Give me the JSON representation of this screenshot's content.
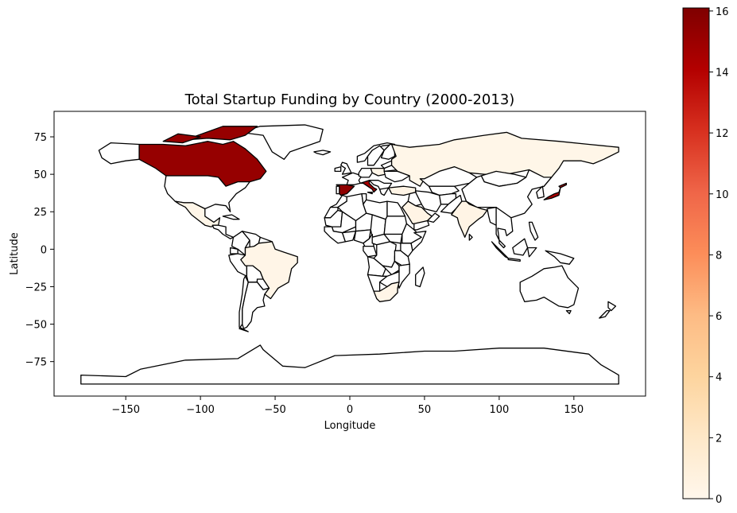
{
  "chart_data": {
    "type": "choropleth",
    "title": "Total Startup Funding by Country (2000-2013)",
    "xlabel": "Longitude",
    "ylabel": "Latitude",
    "xlim": [
      -198,
      198
    ],
    "ylim": [
      -98,
      92
    ],
    "x_ticks": [
      -150,
      -100,
      -50,
      0,
      50,
      100,
      150
    ],
    "y_ticks": [
      75,
      50,
      25,
      0,
      -25,
      -50,
      -75
    ],
    "x_tick_labels": [
      "−150",
      "−100",
      "−50",
      "0",
      "50",
      "100",
      "150"
    ],
    "y_tick_labels": [
      "75",
      "50",
      "25",
      "0",
      "−25",
      "−50",
      "−75"
    ],
    "colorbar": {
      "cmap": "OrRd",
      "vmin": 0,
      "vmax": 16.1,
      "ticks": [
        0,
        2,
        4,
        6,
        8,
        10,
        12,
        14,
        16
      ],
      "tick_labels": [
        "0",
        "2",
        "4",
        "6",
        "8",
        "10",
        "12",
        "14",
        "16"
      ]
    },
    "values": [
      {
        "name": "Canada",
        "value": 15.2
      },
      {
        "name": "Spain",
        "value": 15.5
      },
      {
        "name": "Italy",
        "value": 14.5
      },
      {
        "name": "Japan",
        "value": 14.5
      },
      {
        "name": "Russia",
        "value": 0.2
      },
      {
        "name": "Brazil",
        "value": 0.3
      },
      {
        "name": "India",
        "value": 0.4
      },
      {
        "name": "South Africa",
        "value": 0.3
      },
      {
        "name": "Saudi Arabia",
        "value": 0.4
      },
      {
        "name": "Turkey",
        "value": 0.4
      },
      {
        "name": "Poland",
        "value": 0.3
      },
      {
        "name": "Mexico",
        "value": 0.2
      }
    ]
  }
}
